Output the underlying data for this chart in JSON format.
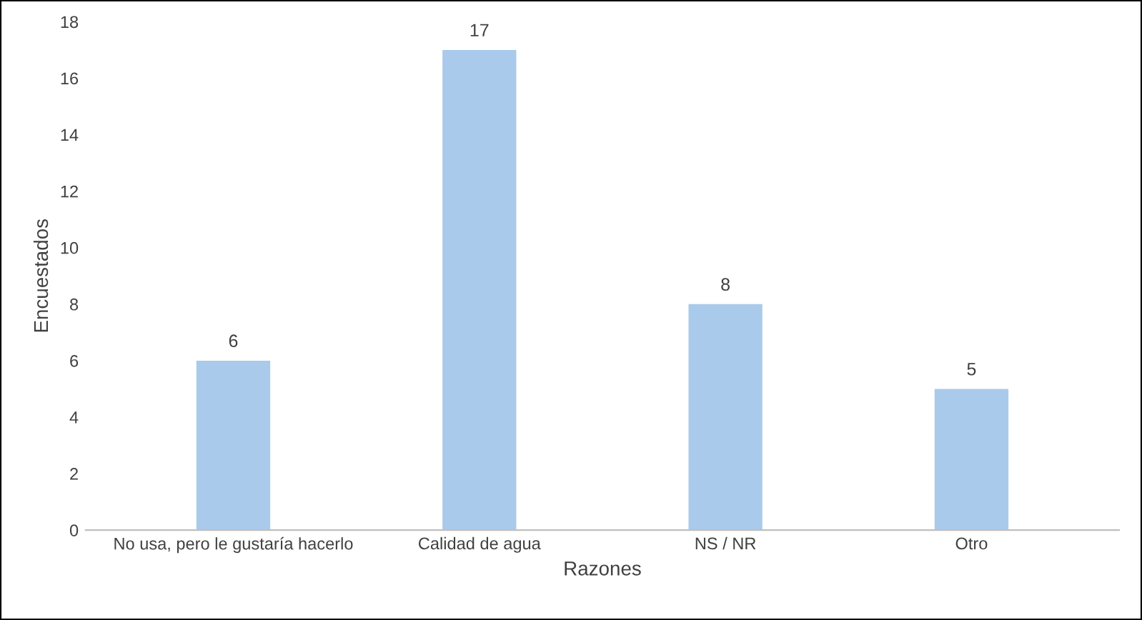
{
  "chart_data": {
    "type": "bar",
    "xlabel": "Razones",
    "ylabel": "Encuestados",
    "categories": [
      "No usa, pero le gustaría hacerlo",
      "Calidad de agua",
      "NS / NR",
      "Otro"
    ],
    "values": [
      6,
      17,
      8,
      5
    ],
    "color": "#a9caeb",
    "ylim": [
      0,
      18
    ],
    "yticks": [
      0,
      2,
      4,
      6,
      8,
      10,
      12,
      14,
      16,
      18
    ],
    "grid": false,
    "data_labels": true
  }
}
